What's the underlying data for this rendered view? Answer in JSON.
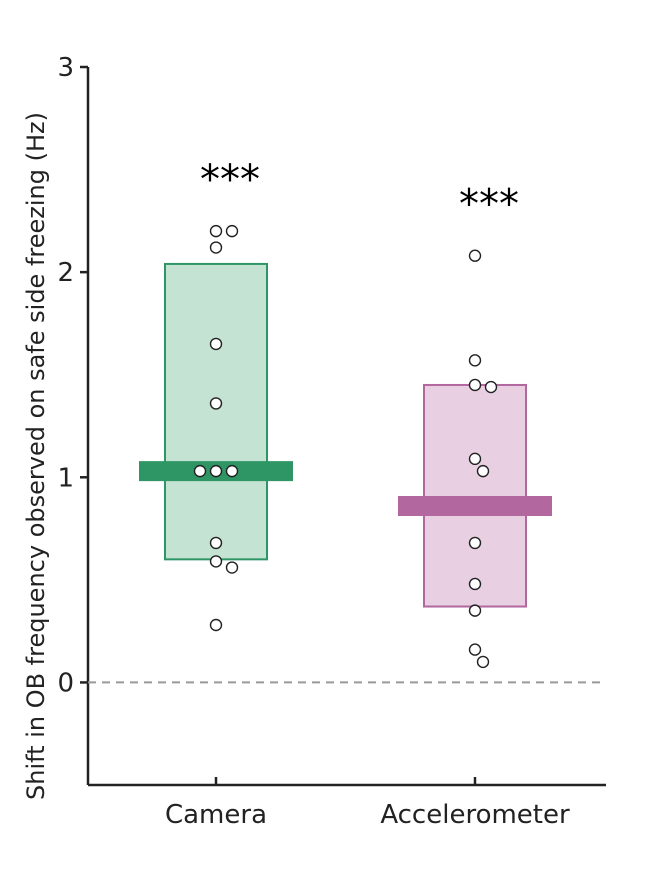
{
  "chart_data": {
    "type": "box-strip",
    "ylabel": "Shift in OB frequency observed on safe side freezing (Hz)",
    "xlabel": "",
    "ylim": [
      -0.5,
      3
    ],
    "y_ticks": [
      0,
      1,
      2,
      3
    ],
    "reference_line": {
      "y": 0,
      "style": "dashed",
      "color": "#999999"
    },
    "grid": false,
    "categories": [
      "Camera",
      "Accelerometer"
    ],
    "groups": [
      {
        "category": "Camera",
        "box_low": 0.6,
        "box_high": 2.04,
        "median": 1.03,
        "box_color": "#c4e3d3",
        "edge_color": "#2e9664",
        "median_color": "#2e9664",
        "significance": "***",
        "points": [
          2.2,
          2.2,
          2.12,
          1.65,
          1.36,
          1.03,
          1.03,
          1.03,
          0.68,
          0.59,
          0.56,
          0.28
        ]
      },
      {
        "category": "Accelerometer",
        "box_low": 0.37,
        "box_high": 1.45,
        "median": 0.86,
        "box_color": "#e8cfe1",
        "edge_color": "#b2679f",
        "median_color": "#b2679f",
        "significance": "***",
        "points": [
          2.08,
          1.57,
          1.45,
          1.44,
          1.09,
          1.03,
          0.68,
          0.48,
          0.35,
          0.16,
          0.1
        ]
      }
    ]
  }
}
